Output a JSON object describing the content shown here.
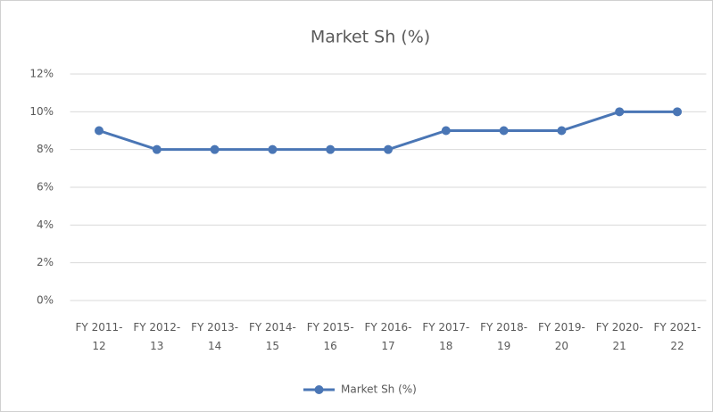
{
  "chart_data": {
    "type": "line",
    "title": "Market Sh (%)",
    "categories": [
      "FY 2011-12",
      "FY 2012-13",
      "FY 2013-14",
      "FY 2014-15",
      "FY 2015-16",
      "FY 2016-17",
      "FY 2017-18",
      "FY 2018-19",
      "FY 2019-20",
      "FY 2020-21",
      "FY 2021-22"
    ],
    "series": [
      {
        "name": "Market Sh (%)",
        "color": "#4a76b5",
        "values": [
          9,
          8,
          8,
          8,
          8,
          8,
          9,
          9,
          9,
          10,
          10
        ]
      }
    ],
    "ylim": [
      0,
      12
    ],
    "yticks": [
      {
        "value": 0,
        "label": "0%"
      },
      {
        "value": 2,
        "label": "2%"
      },
      {
        "value": 4,
        "label": "4%"
      },
      {
        "value": 6,
        "label": "6%"
      },
      {
        "value": 8,
        "label": "8%"
      },
      {
        "value": 10,
        "label": "10%"
      },
      {
        "value": 12,
        "label": "12%"
      }
    ],
    "grid": true,
    "legend": "bottom"
  }
}
